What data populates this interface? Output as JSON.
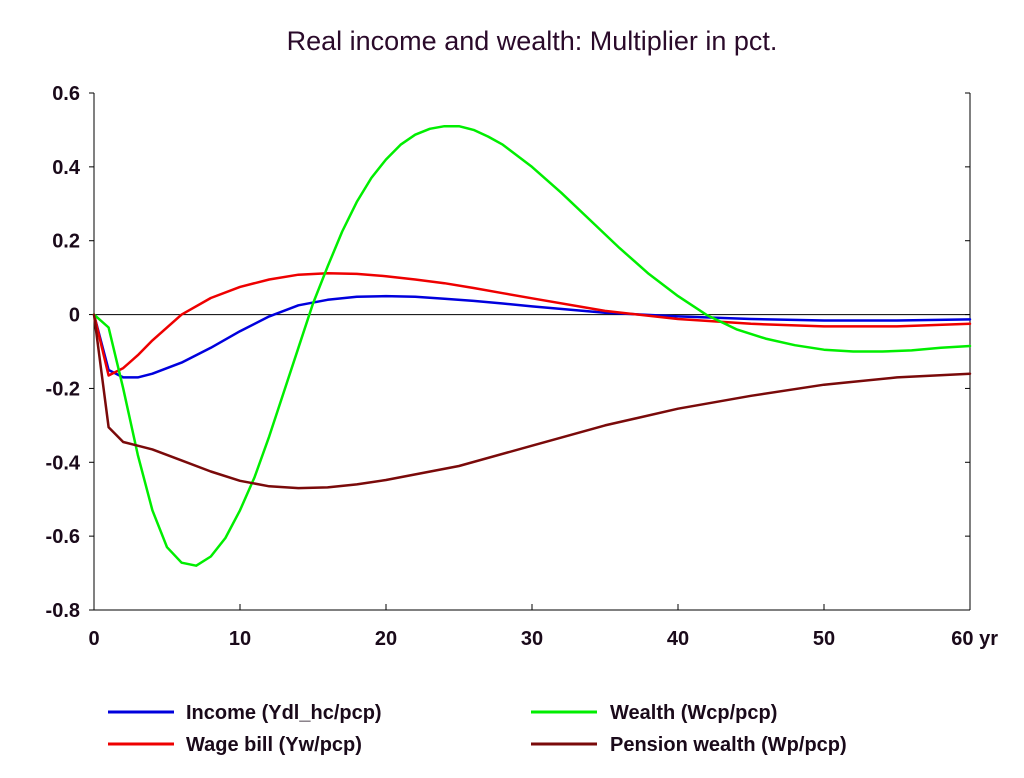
{
  "chart_data": {
    "type": "line",
    "title": "Real income and wealth: Multiplier in pct.",
    "xlabel": "",
    "ylabel": "",
    "xlim": [
      0,
      60
    ],
    "ylim": [
      -0.8,
      0.6
    ],
    "x_ticks": [
      0,
      10,
      20,
      30,
      40,
      50,
      60
    ],
    "x_tick_labels": [
      "0",
      "10",
      "20",
      "30",
      "40",
      "50",
      "60 yr"
    ],
    "y_ticks": [
      0.6,
      0.4,
      0.2,
      0,
      -0.2,
      -0.4,
      -0.6,
      -0.8
    ],
    "y_tick_labels": [
      "0.6",
      "0.4",
      "0.2",
      "0",
      "-0.2",
      "-0.4",
      "-0.6",
      "-0.8"
    ],
    "zero_line": true,
    "grid": false,
    "legend_position": "bottom",
    "series": [
      {
        "name": "Income (Ydl_hc/pcp)",
        "color": "#0000dd",
        "x": [
          0,
          1,
          2,
          3,
          4,
          6,
          8,
          10,
          12,
          14,
          16,
          18,
          20,
          22,
          24,
          26,
          28,
          30,
          35,
          40,
          45,
          50,
          55,
          60
        ],
        "y": [
          0,
          -0.15,
          -0.17,
          -0.17,
          -0.16,
          -0.13,
          -0.09,
          -0.045,
          -0.005,
          0.025,
          0.04,
          0.048,
          0.05,
          0.048,
          0.043,
          0.037,
          0.03,
          0.022,
          0.005,
          -0.005,
          -0.012,
          -0.016,
          -0.016,
          -0.013
        ]
      },
      {
        "name": "Wage bill (Yw/pcp)",
        "color": "#ee0000",
        "x": [
          0,
          1,
          2,
          3,
          4,
          6,
          8,
          10,
          12,
          14,
          16,
          18,
          20,
          22,
          24,
          26,
          28,
          30,
          35,
          40,
          45,
          50,
          55,
          60
        ],
        "y": [
          0,
          -0.165,
          -0.145,
          -0.11,
          -0.07,
          0,
          0.045,
          0.075,
          0.095,
          0.108,
          0.112,
          0.11,
          0.104,
          0.095,
          0.085,
          0.072,
          0.058,
          0.044,
          0.01,
          -0.012,
          -0.025,
          -0.032,
          -0.032,
          -0.025
        ]
      },
      {
        "name": "Wealth (Wcp/pcp)",
        "color": "#00ee00",
        "x": [
          0,
          1,
          2,
          3,
          4,
          5,
          6,
          7,
          8,
          9,
          10,
          11,
          12,
          13,
          14,
          15,
          16,
          17,
          18,
          19,
          20,
          21,
          22,
          23,
          24,
          25,
          26,
          27,
          28,
          30,
          32,
          34,
          36,
          38,
          40,
          42,
          44,
          46,
          48,
          50,
          52,
          54,
          56,
          58,
          60
        ],
        "y": [
          0,
          -0.035,
          -0.2,
          -0.38,
          -0.53,
          -0.63,
          -0.672,
          -0.68,
          -0.655,
          -0.605,
          -0.53,
          -0.44,
          -0.33,
          -0.21,
          -0.09,
          0.03,
          0.13,
          0.225,
          0.305,
          0.37,
          0.42,
          0.46,
          0.487,
          0.503,
          0.51,
          0.51,
          0.5,
          0.482,
          0.46,
          0.4,
          0.33,
          0.255,
          0.18,
          0.11,
          0.05,
          -0.002,
          -0.04,
          -0.065,
          -0.083,
          -0.095,
          -0.1,
          -0.1,
          -0.097,
          -0.09,
          -0.085
        ]
      },
      {
        "name": "Pension wealth (Wp/pcp)",
        "color": "#7a0a0a",
        "x": [
          0,
          1,
          2,
          3,
          4,
          6,
          8,
          10,
          12,
          14,
          16,
          18,
          20,
          25,
          30,
          35,
          40,
          45,
          50,
          55,
          60
        ],
        "y": [
          0,
          -0.305,
          -0.345,
          -0.355,
          -0.365,
          -0.395,
          -0.425,
          -0.45,
          -0.465,
          -0.47,
          -0.468,
          -0.46,
          -0.448,
          -0.41,
          -0.355,
          -0.3,
          -0.255,
          -0.22,
          -0.19,
          -0.17,
          -0.16
        ]
      }
    ]
  }
}
